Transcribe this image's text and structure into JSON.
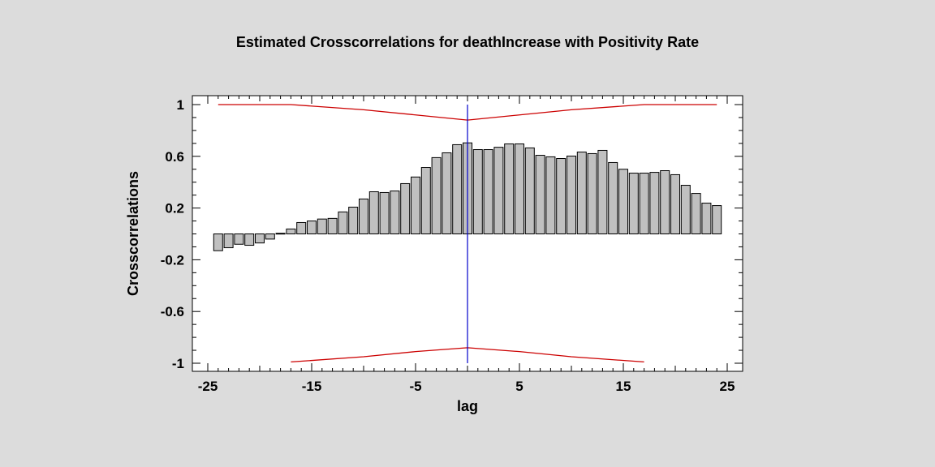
{
  "chart_data": {
    "type": "bar",
    "title": "Estimated Crosscorrelations for deathIncrease with Positivity Rate",
    "xlabel": "lag",
    "ylabel": "Crosscorrelations",
    "xlim": [
      -27,
      26
    ],
    "ylim": [
      -1.1,
      1.05
    ],
    "xticks": [
      -25,
      -15,
      -5,
      5,
      15,
      25
    ],
    "yticks": [
      1,
      0.6,
      0.2,
      -0.2,
      -0.6,
      -1
    ],
    "ytick_labels": [
      "1",
      "0.6",
      "0.2",
      "-0.2",
      "-0.6",
      "-1"
    ],
    "xtick_labels": [
      "-25",
      "-15",
      "-5",
      "5",
      "15",
      "25"
    ],
    "lags": [
      -24,
      -23,
      -22,
      -21,
      -20,
      -19,
      -18,
      -17,
      -16,
      -15,
      -14,
      -13,
      -12,
      -11,
      -10,
      -9,
      -8,
      -7,
      -6,
      -5,
      -4,
      -3,
      -2,
      -1,
      0,
      1,
      2,
      3,
      4,
      5,
      6,
      7,
      8,
      9,
      10,
      11,
      12,
      13,
      14,
      15,
      16,
      17,
      18,
      19,
      20,
      21,
      22,
      23,
      24
    ],
    "values": [
      -0.13,
      -0.107,
      -0.08,
      -0.088,
      -0.07,
      -0.04,
      0.005,
      0.038,
      0.088,
      0.1,
      0.115,
      0.12,
      0.17,
      0.207,
      0.27,
      0.326,
      0.32,
      0.332,
      0.389,
      0.44,
      0.514,
      0.59,
      0.627,
      0.69,
      0.704,
      0.652,
      0.652,
      0.67,
      0.696,
      0.696,
      0.665,
      0.608,
      0.596,
      0.583,
      0.602,
      0.633,
      0.621,
      0.646,
      0.552,
      0.5,
      0.47,
      0.47,
      0.476,
      0.489,
      0.458,
      0.376,
      0.313,
      0.238,
      0.219
    ],
    "upper_limit": {
      "lags": [
        -24,
        -17,
        -10,
        -5,
        0,
        5,
        10,
        17,
        24
      ],
      "values": [
        1,
        1,
        0.96,
        0.92,
        0.88,
        0.92,
        0.96,
        1,
        1
      ]
    },
    "lower_limit": {
      "lags": [
        -17,
        -10,
        -5,
        0,
        5,
        10,
        17
      ],
      "values": [
        -0.99,
        -0.95,
        -0.91,
        -0.88,
        -0.91,
        -0.95,
        -0.99
      ]
    },
    "reference_line_lag": 0,
    "colors": {
      "bar": "#c0c0c0",
      "limit": "#cc0000",
      "reference": "#0000cc",
      "background": "#dcdcdc"
    }
  }
}
